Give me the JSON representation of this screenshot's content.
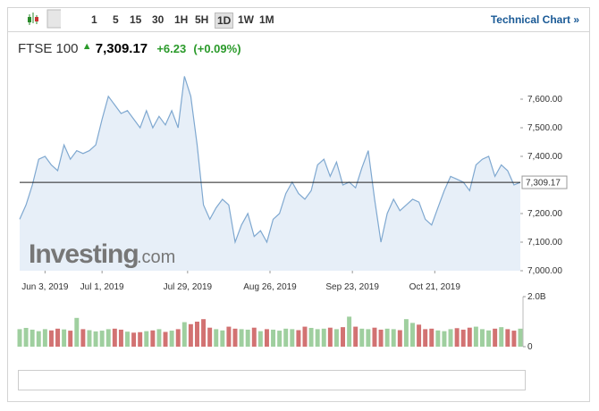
{
  "toolbar": {
    "intervals": [
      "1",
      "5",
      "15",
      "30",
      "1H",
      "5H",
      "1D",
      "1W",
      "1M"
    ],
    "active": "1D",
    "link": "Technical Chart »"
  },
  "header": {
    "name": "FTSE 100",
    "price": "7,309.17",
    "change": "+6.23",
    "change_pct": "(+0.09%)"
  },
  "chart_data": {
    "type": "area",
    "watermark": {
      "brand": "Investing",
      "suffix": ".com"
    },
    "xlim": [
      0,
      79
    ],
    "xticks": [
      {
        "value": 4,
        "label": "Jun 3, 2019"
      },
      {
        "value": 13,
        "label": "Jul 1, 2019"
      },
      {
        "value": 26.5,
        "label": "Jul 29, 2019"
      },
      {
        "value": 39.5,
        "label": "Aug 26, 2019"
      },
      {
        "value": 52.5,
        "label": "Sep 23, 2019"
      },
      {
        "value": 65.5,
        "label": "Oct 21, 2019"
      }
    ],
    "ylim": [
      7000,
      7700
    ],
    "yticks": [
      {
        "value": 7000,
        "label": "7,000.00"
      },
      {
        "value": 7100,
        "label": "7,100.00"
      },
      {
        "value": 7200,
        "label": "7,200.00"
      },
      {
        "value": 7400,
        "label": "7,400.00"
      },
      {
        "value": 7500,
        "label": "7,500.00"
      },
      {
        "value": 7600,
        "label": "7,600.00"
      }
    ],
    "last": {
      "value": 7309.17,
      "label": "7,309.17"
    },
    "line_color": "#7fa8d0",
    "fill_color": "#e1ebf6",
    "values": [
      7180,
      7230,
      7300,
      7390,
      7400,
      7370,
      7350,
      7440,
      7390,
      7420,
      7410,
      7420,
      7440,
      7530,
      7610,
      7580,
      7550,
      7560,
      7530,
      7500,
      7560,
      7500,
      7540,
      7510,
      7560,
      7500,
      7680,
      7610,
      7440,
      7230,
      7180,
      7220,
      7250,
      7230,
      7100,
      7160,
      7200,
      7120,
      7140,
      7100,
      7180,
      7200,
      7270,
      7310,
      7270,
      7250,
      7280,
      7370,
      7390,
      7330,
      7380,
      7300,
      7310,
      7290,
      7360,
      7420,
      7250,
      7100,
      7200,
      7250,
      7210,
      7230,
      7250,
      7240,
      7180,
      7160,
      7220,
      7280,
      7330,
      7320,
      7310,
      7280,
      7370,
      7390,
      7400,
      7330,
      7370,
      7350,
      7300,
      7309.17
    ],
    "volume": {
      "ylim": [
        0,
        2000000000
      ],
      "yticks": [
        {
          "value": 0,
          "label": "0"
        },
        {
          "value": 2000000000,
          "label": "2.0B"
        }
      ],
      "up_color": "#9fcf9f",
      "down_color": "#d27272",
      "values": [
        700000000,
        750000000,
        680000000,
        620000000,
        700000000,
        650000000,
        720000000,
        690000000,
        640000000,
        1150000000,
        700000000,
        660000000,
        610000000,
        640000000,
        700000000,
        720000000,
        680000000,
        600000000,
        560000000,
        580000000,
        620000000,
        650000000,
        700000000,
        590000000,
        640000000,
        700000000,
        980000000,
        900000000,
        1000000000,
        1100000000,
        760000000,
        700000000,
        650000000,
        800000000,
        720000000,
        700000000,
        680000000,
        760000000,
        620000000,
        700000000,
        680000000,
        640000000,
        720000000,
        700000000,
        660000000,
        800000000,
        750000000,
        700000000,
        720000000,
        760000000,
        700000000,
        780000000,
        1200000000,
        800000000,
        720000000,
        700000000,
        760000000,
        680000000,
        720000000,
        700000000,
        660000000,
        1100000000,
        950000000,
        880000000,
        700000000,
        720000000,
        650000000,
        620000000,
        700000000,
        740000000,
        680000000,
        760000000,
        800000000,
        700000000,
        650000000,
        720000000,
        780000000,
        700000000,
        640000000,
        720000000
      ]
    }
  }
}
